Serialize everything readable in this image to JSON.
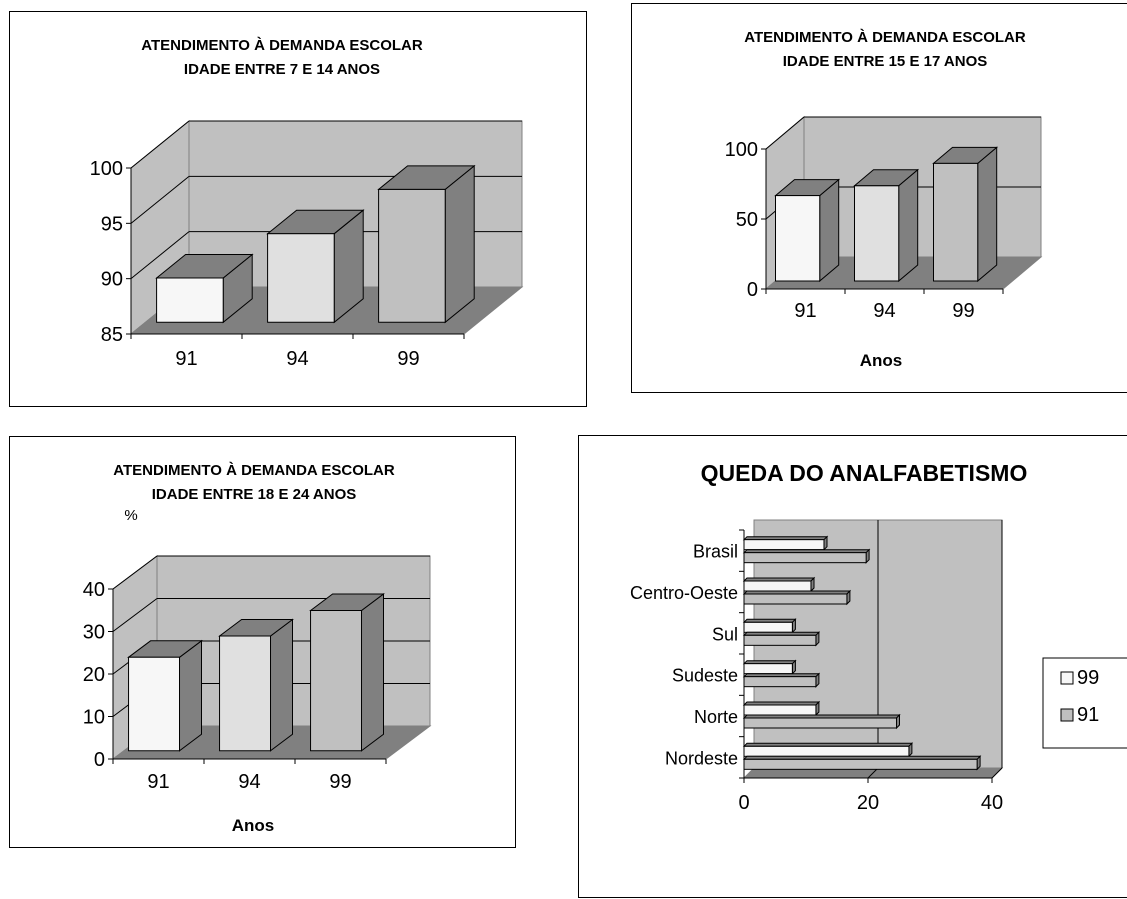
{
  "chart_data": [
    {
      "type": "bar",
      "title_lines": [
        "ATENDIMENTO À DEMANDA ESCOLAR",
        "IDADE ENTRE 7 E 14 ANOS"
      ],
      "categories": [
        "91",
        "94",
        "99"
      ],
      "values": [
        89,
        93,
        97
      ],
      "ylim": [
        85,
        100
      ],
      "yticks": [
        "85",
        "90",
        "95",
        "100"
      ],
      "xlabel": "",
      "ylabel": "",
      "bar_colors": [
        "#f7f7f7",
        "#e0e0e0",
        "#c0c0c0"
      ],
      "grid": true
    },
    {
      "type": "bar",
      "title_lines": [
        "ATENDIMENTO À DEMANDA ESCOLAR",
        "IDADE ENTRE 15 E 17 ANOS"
      ],
      "categories": [
        "91",
        "94",
        "99"
      ],
      "values": [
        61,
        68,
        84
      ],
      "ylim": [
        0,
        100
      ],
      "yticks": [
        "0",
        "50",
        "100"
      ],
      "xlabel": "Anos",
      "ylabel": "",
      "bar_colors": [
        "#f7f7f7",
        "#e0e0e0",
        "#c0c0c0"
      ],
      "grid": true
    },
    {
      "type": "bar",
      "title_lines": [
        "ATENDIMENTO À DEMANDA ESCOLAR",
        "IDADE ENTRE 18 E 24 ANOS"
      ],
      "categories": [
        "91",
        "94",
        "99"
      ],
      "values": [
        22,
        27,
        33
      ],
      "ylim": [
        0,
        40
      ],
      "yticks": [
        "0",
        "10",
        "20",
        "30",
        "40"
      ],
      "xlabel": "Anos",
      "ylabel": "%",
      "bar_colors": [
        "#f7f7f7",
        "#e0e0e0",
        "#c0c0c0"
      ],
      "grid": true
    },
    {
      "type": "bar",
      "orientation": "horizontal",
      "title": "QUEDA DO ANALFABETISMO",
      "categories": [
        "Nordeste",
        "Norte",
        "Sudeste",
        "Sul",
        "Centro-Oeste",
        "Brasil"
      ],
      "series": [
        {
          "name": "99",
          "values": [
            26.6,
            11.6,
            7.8,
            7.8,
            10.8,
            12.9
          ],
          "color": "#f7f7f7"
        },
        {
          "name": "91",
          "values": [
            37.6,
            24.6,
            11.6,
            11.6,
            16.6,
            19.7
          ],
          "color": "#c0c0c0"
        }
      ],
      "xlim": [
        0,
        40
      ],
      "xticks": [
        "0",
        "20",
        "40"
      ],
      "legend_position": "right",
      "grid": true
    }
  ]
}
